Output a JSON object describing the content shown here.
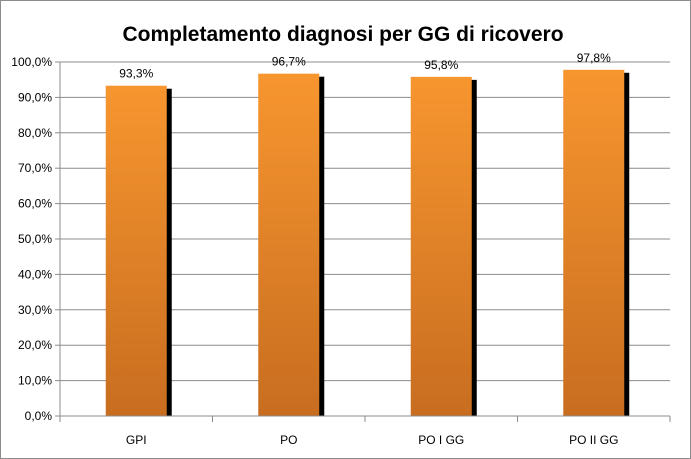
{
  "chart_data": {
    "type": "bar",
    "title": "Completamento diagnosi per GG di ricovero",
    "xlabel": "",
    "ylabel": "",
    "categories": [
      "GPI",
      "PO",
      "PO I GG",
      "PO II GG"
    ],
    "values": [
      93.3,
      96.7,
      95.8,
      97.8
    ],
    "data_labels": [
      "93,3%",
      "96,7%",
      "95,8%",
      "97,8%"
    ],
    "ylim": [
      0,
      100
    ],
    "yticks": [
      "0,0%",
      "10,0%",
      "20,0%",
      "30,0%",
      "40,0%",
      "50,0%",
      "60,0%",
      "70,0%",
      "80,0%",
      "90,0%",
      "100,0%"
    ],
    "grid": true,
    "legend": "none",
    "colors": {
      "bar_top": "#f7962f",
      "bar_bottom": "#c86d20",
      "bar_shadow": "#000000",
      "grid": "#8c8c8c"
    }
  }
}
